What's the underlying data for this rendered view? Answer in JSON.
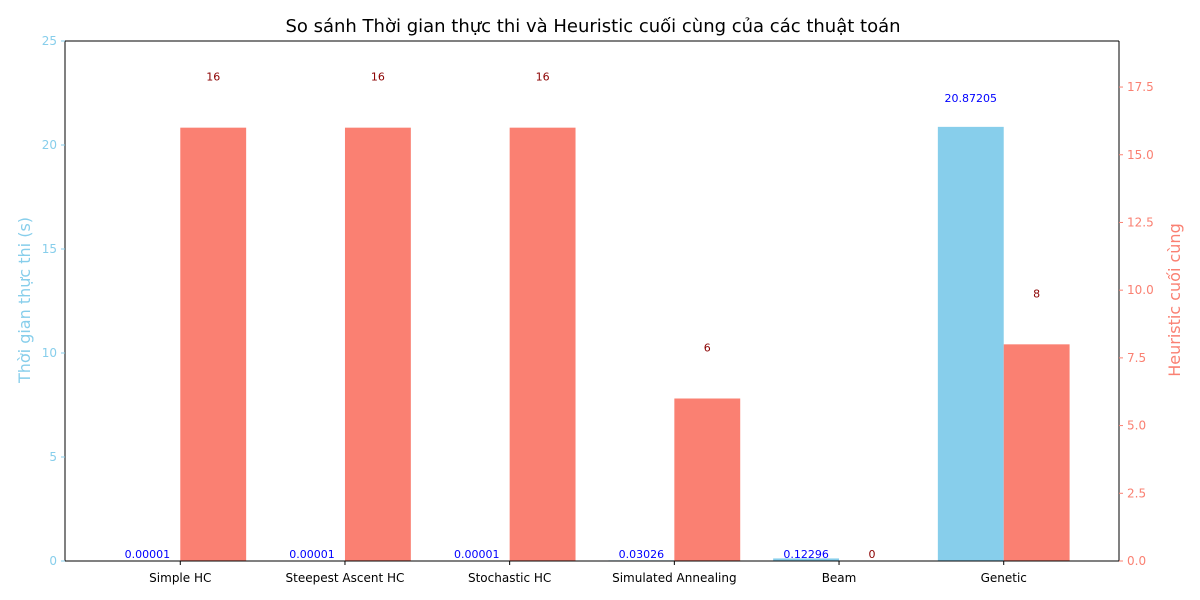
{
  "chart_data": {
    "type": "bar",
    "title": "So sánh Thời gian thực thi và Heuristic cuối cùng của các thuật toán",
    "categories": [
      "Simple HC",
      "Steepest Ascent HC",
      "Stochastic HC",
      "Simulated Annealing",
      "Beam",
      "Genetic"
    ],
    "series": [
      {
        "name": "Thời gian thực thi (s)",
        "axis": "left",
        "color": "#87CEEB",
        "label_color": "#0000FF",
        "values": [
          1e-05,
          1e-05,
          1e-05,
          0.03026,
          0.12296,
          20.87205
        ],
        "labels": [
          "0.00001",
          "0.00001",
          "0.00001",
          "0.03026",
          "0.12296",
          "20.87205"
        ]
      },
      {
        "name": "Heuristic cuối cùng",
        "axis": "right",
        "color": "#FA8072",
        "label_color": "#8B0000",
        "values": [
          16,
          16,
          16,
          6,
          0,
          8
        ],
        "labels": [
          "16",
          "16",
          "16",
          "6",
          "0",
          "8"
        ]
      }
    ],
    "y_left": {
      "label": "Thời gian thực thi (s)",
      "lim": [
        0,
        25
      ],
      "ticks": [
        0,
        5,
        10,
        15,
        20,
        25
      ],
      "tick_labels": [
        "0",
        "5",
        "10",
        "15",
        "20",
        "25"
      ],
      "color": "#87CEEB"
    },
    "y_right": {
      "label": "Heuristic cuối cùng",
      "lim": [
        0,
        19.2
      ],
      "ticks": [
        0,
        2.5,
        5,
        7.5,
        10,
        12.5,
        15,
        17.5
      ],
      "tick_labels": [
        "0.0",
        "2.5",
        "5.0",
        "7.5",
        "10.0",
        "12.5",
        "15.0",
        "17.5"
      ],
      "color": "#FA8072"
    },
    "grid": false,
    "legend": "none"
  }
}
